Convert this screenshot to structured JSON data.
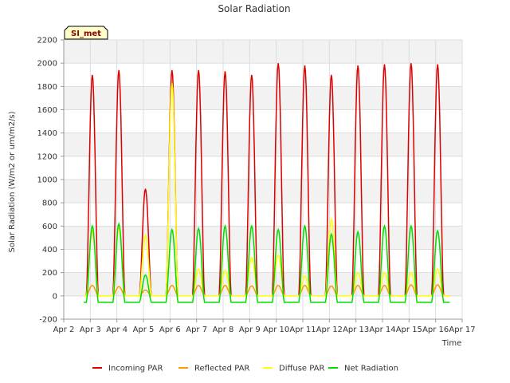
{
  "chart_data": {
    "type": "line",
    "title": "Solar Radiation",
    "xlabel": "Time",
    "ylabel": "Solar Radiation (W/m2 or um/m2/s)",
    "site_badge": "SI_met",
    "ylim": [
      -200,
      2200
    ],
    "yticks": [
      -200,
      0,
      200,
      400,
      600,
      800,
      1000,
      1200,
      1400,
      1600,
      1800,
      2000,
      2200
    ],
    "xlim": [
      2,
      17
    ],
    "xticks": [
      {
        "value": 2,
        "label": "Apr 2"
      },
      {
        "value": 3,
        "label": "Apr 3"
      },
      {
        "value": 4,
        "label": "Apr 4"
      },
      {
        "value": 5,
        "label": "Apr 5"
      },
      {
        "value": 6,
        "label": "Apr 6"
      },
      {
        "value": 7,
        "label": "Apr 7"
      },
      {
        "value": 8,
        "label": "Apr 8"
      },
      {
        "value": 9,
        "label": "Apr 9"
      },
      {
        "value": 10,
        "label": "Apr 10"
      },
      {
        "value": 11,
        "label": "Apr 11"
      },
      {
        "value": 12,
        "label": "Apr 12"
      },
      {
        "value": 13,
        "label": "Apr 13"
      },
      {
        "value": 14,
        "label": "Apr 14"
      },
      {
        "value": 15,
        "label": "Apr 15"
      },
      {
        "value": 16,
        "label": "Apr 16"
      },
      {
        "value": 17,
        "label": "Apr 17"
      }
    ],
    "grid": true,
    "legend_position": "bottom",
    "series": [
      {
        "name": "Incoming PAR",
        "color": "#dd0000",
        "daily_peak": [
          1900,
          1940,
          920,
          1940,
          1940,
          1930,
          1900,
          2000,
          1980,
          1900,
          1980,
          1990,
          2000,
          1990
        ]
      },
      {
        "name": "Reflected PAR",
        "color": "#ff9900",
        "daily_peak": [
          90,
          80,
          50,
          90,
          90,
          90,
          85,
          90,
          90,
          85,
          90,
          90,
          95,
          95
        ]
      },
      {
        "name": "Diffuse PAR",
        "color": "#ffff00",
        "daily_peak": [
          560,
          580,
          520,
          1830,
          230,
          220,
          330,
          350,
          170,
          660,
          200,
          200,
          200,
          230
        ]
      },
      {
        "name": "Net Radiation",
        "color": "#00dd00",
        "daily_peak": [
          600,
          620,
          180,
          570,
          580,
          600,
          600,
          570,
          600,
          530,
          550,
          600,
          600,
          560
        ],
        "night_value": -55
      }
    ],
    "day_starts": [
      2.85,
      3.85,
      4.85,
      5.85,
      6.85,
      7.85,
      8.85,
      9.85,
      10.85,
      11.85,
      12.85,
      13.85,
      14.85,
      15.85
    ]
  }
}
